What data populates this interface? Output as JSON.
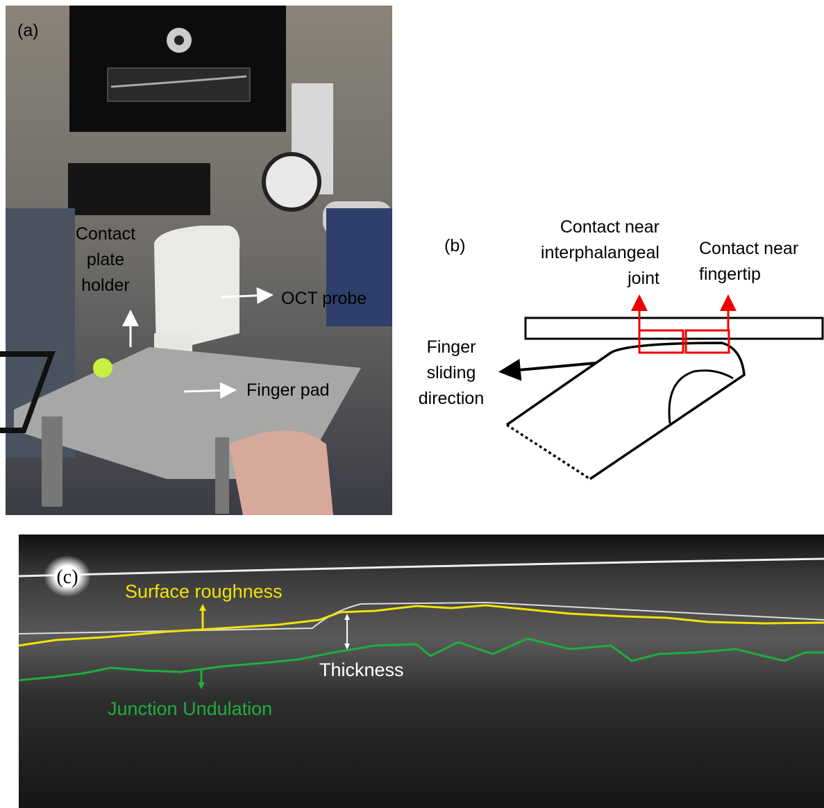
{
  "panel_a": {
    "label": "(a)",
    "annotations": [
      {
        "lines": [
          "Contact",
          "plate",
          "holder"
        ]
      },
      {
        "lines": [
          "OCT probe"
        ]
      },
      {
        "lines": [
          "Finger pad"
        ]
      }
    ]
  },
  "panel_b": {
    "label": "(b)",
    "annotations": [
      {
        "lines": [
          "Contact near",
          "interphalangeal",
          "joint"
        ]
      },
      {
        "lines": [
          "Contact near",
          "fingertip"
        ]
      },
      {
        "lines": [
          "Finger",
          "sliding",
          "direction"
        ]
      }
    ]
  },
  "panel_c": {
    "label": "(c)",
    "annotations": [
      {
        "lines": [
          "Surface roughness"
        ]
      },
      {
        "lines": [
          "Thickness"
        ]
      },
      {
        "lines": [
          "Junction Undulation"
        ]
      }
    ]
  }
}
